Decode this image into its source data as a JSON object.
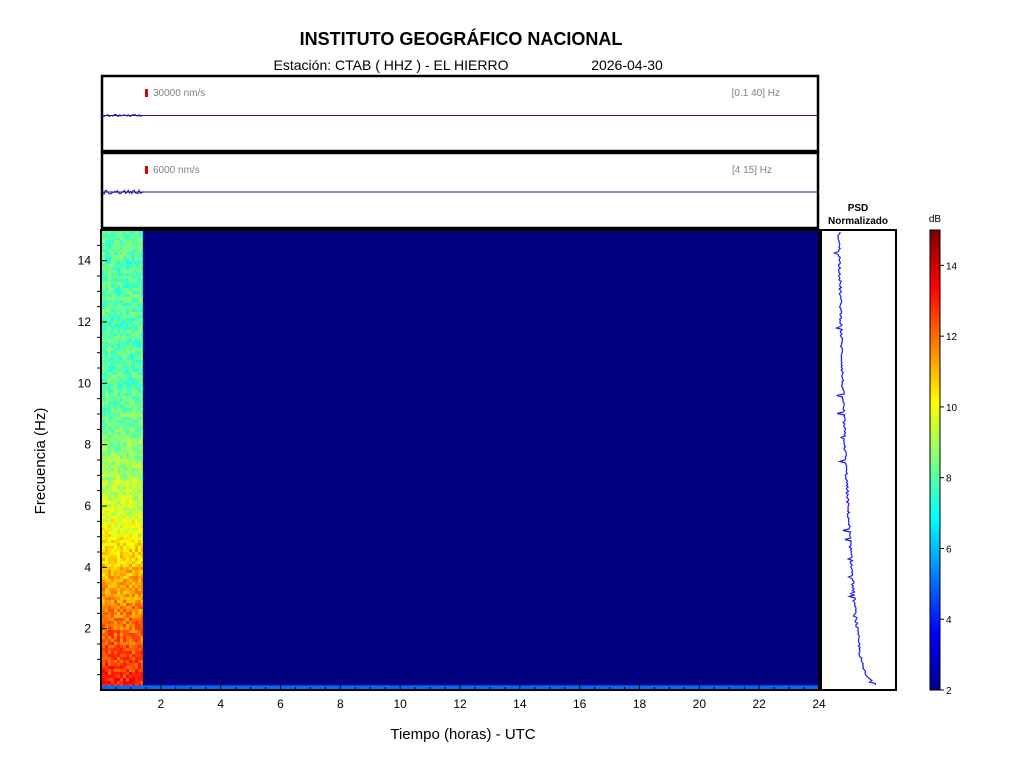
{
  "header": {
    "title": "INSTITUTO GEOGRÁFICO NACIONAL",
    "station": "Estación:  CTAB ( HHZ ) - EL HIERRO",
    "date": "2026-04-30"
  },
  "traces": [
    {
      "scale_label": "30000 nm/s",
      "band_label": "[0.1 40] Hz"
    },
    {
      "scale_label": "6000 nm/s",
      "band_label": "[4 15] Hz"
    }
  ],
  "psd": {
    "title_line1": "PSD",
    "title_line2": "Normalizado"
  },
  "colorbar": {
    "unit": "dB",
    "range": [
      2,
      15
    ],
    "ticks": [
      2,
      4,
      6,
      8,
      10,
      12,
      14
    ]
  },
  "chart_data": {
    "type": "heatmap",
    "xlabel": "Tiempo (horas) - UTC",
    "ylabel": "Frecuencia  (Hz)",
    "xlim": [
      0,
      24
    ],
    "ylim": [
      0,
      15
    ],
    "xticks": [
      2,
      4,
      6,
      8,
      10,
      12,
      14,
      16,
      18,
      20,
      22,
      24
    ],
    "yticks": [
      2,
      4,
      6,
      8,
      10,
      12,
      14
    ],
    "data_end_hour": 1.4,
    "baseline_db": 2,
    "low_freq_band": {
      "max_hz": 0.15,
      "db": 5
    },
    "spectrum_db_by_freq": [
      {
        "hz": 0.2,
        "db": 13
      },
      {
        "hz": 2,
        "db": 12
      },
      {
        "hz": 4,
        "db": 11
      },
      {
        "hz": 6,
        "db": 9.5
      },
      {
        "hz": 8,
        "db": 8.5
      },
      {
        "hz": 10,
        "db": 8
      },
      {
        "hz": 12,
        "db": 8
      },
      {
        "hz": 14,
        "db": 8
      },
      {
        "hz": 15,
        "db": 8
      }
    ],
    "psd_profile": [
      {
        "hz": 0.15,
        "value": 1.0
      },
      {
        "hz": 0.5,
        "value": 0.72
      },
      {
        "hz": 1,
        "value": 0.6
      },
      {
        "hz": 2,
        "value": 0.5
      },
      {
        "hz": 3,
        "value": 0.42
      },
      {
        "hz": 4,
        "value": 0.36
      },
      {
        "hz": 6,
        "value": 0.26
      },
      {
        "hz": 8,
        "value": 0.18
      },
      {
        "hz": 10,
        "value": 0.12
      },
      {
        "hz": 12,
        "value": 0.08
      },
      {
        "hz": 14,
        "value": 0.04
      },
      {
        "hz": 15,
        "value": 0.02
      }
    ]
  }
}
